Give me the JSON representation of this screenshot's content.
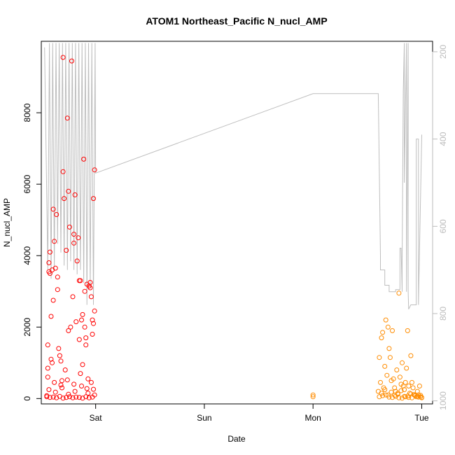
{
  "chart_data": {
    "type": "scatter",
    "title": "ATOM1 Northeast_Pacific N_nucl_AMP",
    "xlabel": "Date",
    "ylabel": "N_nucl_AMP",
    "x_tick_labels": [
      "Sat",
      "Sun",
      "Mon",
      "Tue"
    ],
    "x_tick_values_days": [
      1,
      2,
      3,
      4
    ],
    "xlim_days": [
      0.5,
      4.1
    ],
    "ylim": [
      -150,
      10000
    ],
    "y_ticks": [
      0,
      2000,
      4000,
      6000,
      8000
    ],
    "y2_ticks": [
      200,
      400,
      600,
      800,
      1000
    ],
    "y2lim": [
      1007,
      176
    ],
    "grid": false,
    "legend": "none",
    "colors": {
      "series_red": "#ff0000",
      "series_orange": "#ff8c00",
      "pressure_line": "#bebebe"
    },
    "series": [
      {
        "color": "#ff0000",
        "x": [
          0.55,
          0.56,
          0.56,
          0.57,
          0.57,
          0.58,
          0.58,
          0.59,
          0.59,
          0.6,
          0.6,
          0.61,
          0.61,
          0.62,
          0.63,
          0.64,
          0.65,
          0.65,
          0.66,
          0.67,
          0.68,
          0.69,
          0.7,
          0.7,
          0.71,
          0.72,
          0.73,
          0.74,
          0.75,
          0.75,
          0.76,
          0.77,
          0.78,
          0.79,
          0.8,
          0.8,
          0.81,
          0.82,
          0.83,
          0.84,
          0.85,
          0.85,
          0.86,
          0.87,
          0.88,
          0.88,
          0.89,
          0.9,
          0.9,
          0.91,
          0.91,
          0.92,
          0.93,
          0.94,
          0.95,
          0.95,
          0.96,
          0.96,
          0.97,
          0.97,
          0.98,
          0.98,
          0.99,
          0.99,
          0.55,
          0.58,
          0.61,
          0.64,
          0.67,
          0.7,
          0.73,
          0.76,
          0.79,
          0.82,
          0.85,
          0.88,
          0.91,
          0.94,
          0.97,
          0.57,
          0.63,
          0.69,
          0.75,
          0.81,
          0.87,
          0.93,
          0.99,
          0.56,
          0.62,
          0.68,
          0.74,
          0.8,
          0.86,
          0.92,
          0.98
        ],
        "y": [
          80,
          850,
          1500,
          3550,
          3800,
          4100,
          3500,
          2300,
          1100,
          3600,
          1000,
          5300,
          2750,
          4400,
          3650,
          5150,
          3050,
          3400,
          1400,
          1200,
          1050,
          500,
          6350,
          9550,
          5600,
          800,
          4150,
          7850,
          5800,
          1900,
          4800,
          2000,
          9450,
          2850,
          4600,
          4350,
          5700,
          2150,
          3850,
          4500,
          3300,
          1650,
          3300,
          2200,
          2350,
          950,
          6700,
          3000,
          2000,
          1700,
          1500,
          3200,
          550,
          3150,
          3250,
          3100,
          2850,
          450,
          1800,
          2200,
          2100,
          5600,
          2450,
          6400,
          50,
          30,
          40,
          20,
          60,
          10,
          30,
          50,
          20,
          40,
          30,
          10,
          50,
          20,
          40,
          250,
          180,
          300,
          120,
          200,
          350,
          150,
          100,
          600,
          450,
          380,
          520,
          400,
          700,
          280,
          260
        ]
      },
      {
        "color": "#ff8c00",
        "x": [
          3.0,
          3.0,
          3.6,
          3.61,
          3.62,
          3.63,
          3.64,
          3.65,
          3.66,
          3.67,
          3.68,
          3.69,
          3.7,
          3.71,
          3.72,
          3.73,
          3.74,
          3.75,
          3.76,
          3.77,
          3.78,
          3.79,
          3.8,
          3.81,
          3.82,
          3.83,
          3.84,
          3.85,
          3.86,
          3.87,
          3.88,
          3.89,
          3.9,
          3.91,
          3.92,
          3.93,
          3.94,
          3.95,
          3.96,
          3.97,
          3.98,
          3.99,
          4.0,
          3.61,
          3.64,
          3.67,
          3.7,
          3.73,
          3.76,
          3.79,
          3.82,
          3.85,
          3.88,
          3.91,
          3.94,
          3.97,
          4.0,
          3.63,
          3.66,
          3.69,
          3.72,
          3.75,
          3.78,
          3.81,
          3.84,
          3.87,
          3.9,
          3.93,
          3.96,
          3.99
        ],
        "y": [
          50,
          100,
          200,
          1150,
          450,
          1700,
          1850,
          300,
          900,
          2200,
          650,
          2000,
          1400,
          1150,
          500,
          1900,
          550,
          300,
          200,
          800,
          150,
          2950,
          600,
          400,
          1000,
          350,
          250,
          450,
          850,
          1900,
          350,
          150,
          1200,
          450,
          300,
          100,
          80,
          50,
          200,
          100,
          350,
          50,
          20,
          50,
          80,
          100,
          40,
          30,
          60,
          20,
          10,
          50,
          30,
          20,
          80,
          40,
          30,
          150,
          250,
          100,
          180,
          90,
          120,
          220,
          60,
          70,
          130,
          110,
          60,
          90
        ]
      }
    ],
    "pressure_line": {
      "axis": "right",
      "color": "#bebebe",
      "x": [
        0.53,
        0.56,
        0.575,
        0.59,
        0.605,
        0.62,
        0.635,
        0.65,
        0.665,
        0.68,
        0.695,
        0.71,
        0.725,
        0.74,
        0.755,
        0.77,
        0.785,
        0.8,
        0.815,
        0.83,
        0.845,
        0.86,
        0.875,
        0.89,
        0.905,
        0.92,
        0.935,
        0.95,
        0.965,
        0.98,
        0.995,
        1.0,
        3.0,
        3.6,
        3.62,
        3.62,
        3.66,
        3.66,
        3.7,
        3.7,
        3.76,
        3.76,
        3.8,
        3.8,
        3.81,
        3.82,
        3.82,
        3.83,
        3.84,
        3.84,
        3.86,
        3.86,
        3.875,
        3.875,
        3.88,
        3.9,
        3.95,
        3.95,
        3.97,
        3.97,
        4.0
      ],
      "y": [
        190,
        700,
        180,
        720,
        180,
        700,
        180,
        640,
        180,
        660,
        180,
        690,
        180,
        700,
        180,
        680,
        180,
        700,
        180,
        710,
        180,
        700,
        180,
        730,
        180,
        780,
        180,
        740,
        180,
        780,
        180,
        478,
        296,
        296,
        667,
        700,
        700,
        735,
        735,
        750,
        750,
        745,
        745,
        650,
        650,
        750,
        680,
        290,
        180,
        500,
        180,
        750,
        180,
        750,
        790,
        780,
        780,
        400,
        400,
        780,
        390
      ]
    }
  }
}
